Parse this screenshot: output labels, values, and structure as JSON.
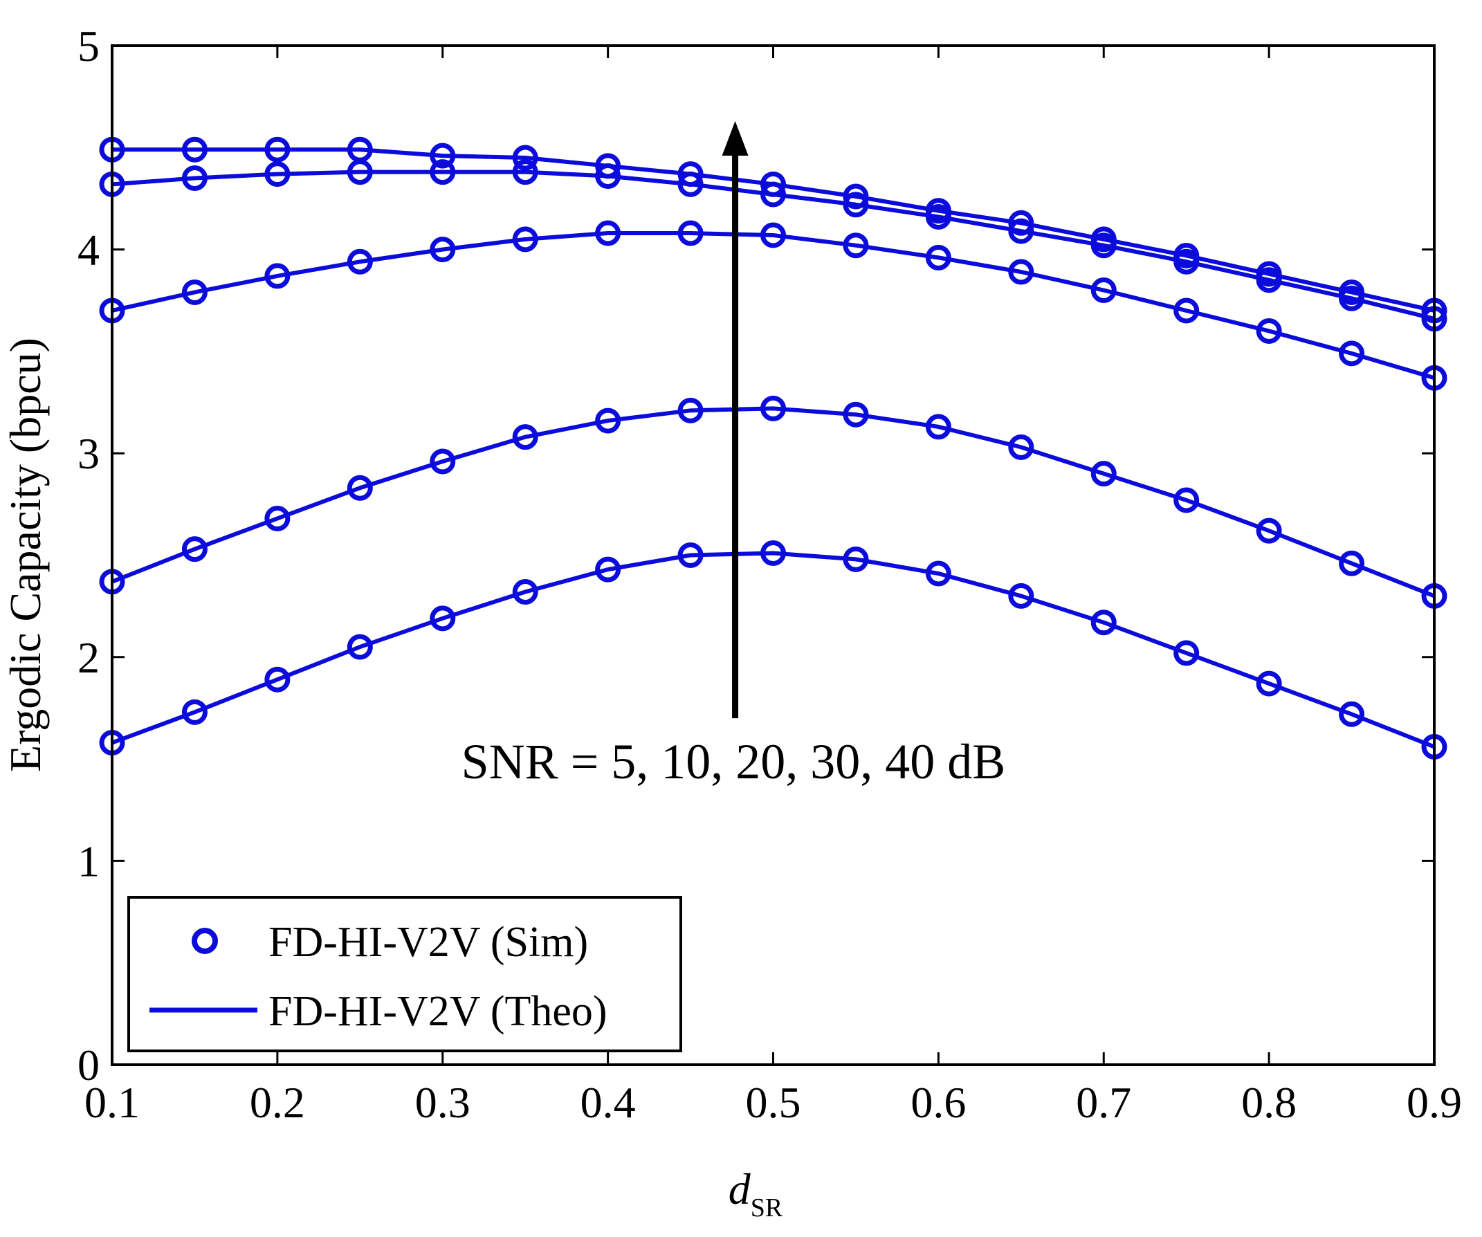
{
  "chart_data": {
    "type": "line",
    "xlabel_main": "d",
    "xlabel_sub": "SR",
    "ylabel": "Ergodic Capacity (bpcu)",
    "xlim": [
      0.1,
      0.9
    ],
    "ylim": [
      0,
      5
    ],
    "xticks": [
      "0.1",
      "0.2",
      "0.3",
      "0.4",
      "0.5",
      "0.6",
      "0.7",
      "0.8",
      "0.9"
    ],
    "yticks": [
      "0",
      "1",
      "2",
      "3",
      "4",
      "5"
    ],
    "x": [
      0.1,
      0.15,
      0.2,
      0.25,
      0.3,
      0.35,
      0.4,
      0.45,
      0.5,
      0.55,
      0.6,
      0.65,
      0.7,
      0.75,
      0.8,
      0.85,
      0.9
    ],
    "series": [
      {
        "name": "SNR = 5 dB",
        "values": [
          1.58,
          1.73,
          1.89,
          2.05,
          2.19,
          2.32,
          2.43,
          2.5,
          2.51,
          2.48,
          2.41,
          2.3,
          2.17,
          2.02,
          1.87,
          1.72,
          1.56
        ]
      },
      {
        "name": "SNR = 10 dB",
        "values": [
          2.37,
          2.53,
          2.68,
          2.83,
          2.96,
          3.08,
          3.16,
          3.21,
          3.22,
          3.19,
          3.13,
          3.03,
          2.9,
          2.77,
          2.62,
          2.46,
          2.3
        ]
      },
      {
        "name": "SNR = 20 dB",
        "values": [
          3.7,
          3.79,
          3.87,
          3.94,
          4.0,
          4.05,
          4.08,
          4.08,
          4.07,
          4.02,
          3.96,
          3.89,
          3.8,
          3.7,
          3.6,
          3.49,
          3.37
        ]
      },
      {
        "name": "SNR = 30 dB",
        "values": [
          4.32,
          4.35,
          4.37,
          4.38,
          4.38,
          4.38,
          4.36,
          4.32,
          4.27,
          4.22,
          4.16,
          4.09,
          4.02,
          3.94,
          3.85,
          3.76,
          3.66
        ]
      },
      {
        "name": "SNR = 40 dB",
        "values": [
          4.49,
          4.49,
          4.49,
          4.49,
          4.46,
          4.45,
          4.41,
          4.37,
          4.32,
          4.26,
          4.19,
          4.13,
          4.05,
          3.97,
          3.88,
          3.79,
          3.7
        ]
      }
    ],
    "legend": {
      "position": "bottom-left",
      "entries": [
        {
          "label": "FD-HI-V2V (Sim)",
          "marker": "circle"
        },
        {
          "label": "FD-HI-V2V (Theo)",
          "marker": "line"
        }
      ]
    },
    "annotation": {
      "text": "SNR = 5, 10, 20, 30, 40 dB",
      "arrow": "increasing SNR",
      "arrow_x": 0.477,
      "arrow_y_from": 1.7,
      "arrow_y_to": 4.63
    },
    "series_color": "#0b0bdb"
  }
}
